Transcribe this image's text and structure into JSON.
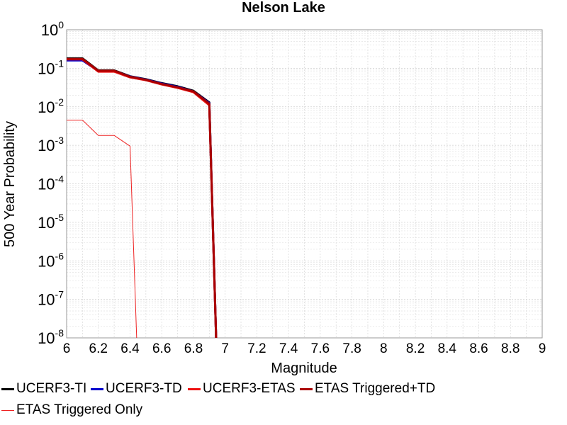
{
  "chart_data": {
    "type": "line",
    "title": "Nelson Lake",
    "xlabel": "Magnitude",
    "ylabel": "500 Year Probability",
    "xlim": [
      6,
      9
    ],
    "ylim": [
      1e-08,
      1
    ],
    "yscale": "log",
    "grid": true,
    "legend_position": "bottom",
    "xticks": [
      "6",
      "6.2",
      "6.4",
      "6.6",
      "6.8",
      "7",
      "7.2",
      "7.4",
      "7.6",
      "7.8",
      "8",
      "8.2",
      "8.4",
      "8.6",
      "8.8",
      "9"
    ],
    "yticks": [
      {
        "base": "10",
        "exp": "0"
      },
      {
        "base": "10",
        "exp": "-1"
      },
      {
        "base": "10",
        "exp": "-2"
      },
      {
        "base": "10",
        "exp": "-3"
      },
      {
        "base": "10",
        "exp": "-4"
      },
      {
        "base": "10",
        "exp": "-5"
      },
      {
        "base": "10",
        "exp": "-6"
      },
      {
        "base": "10",
        "exp": "-7"
      },
      {
        "base": "10",
        "exp": "-8"
      }
    ],
    "series": [
      {
        "name": "UCERF3-TI",
        "color": "#000000",
        "width": 3,
        "x": [
          6.0,
          6.1,
          6.2,
          6.3,
          6.4,
          6.5,
          6.6,
          6.7,
          6.8,
          6.9,
          6.95
        ],
        "y": [
          0.18,
          0.18,
          0.088,
          0.088,
          0.062,
          0.052,
          0.041,
          0.034,
          0.026,
          0.013,
          1e-09
        ]
      },
      {
        "name": "UCERF3-TD",
        "color": "#0000cc",
        "width": 3,
        "x": [
          6.0,
          6.1,
          6.2,
          6.3,
          6.4,
          6.5,
          6.6,
          6.7,
          6.8,
          6.9,
          6.95
        ],
        "y": [
          0.16,
          0.16,
          0.085,
          0.085,
          0.061,
          0.051,
          0.04,
          0.033,
          0.025,
          0.0125,
          1e-09
        ]
      },
      {
        "name": "UCERF3-ETAS",
        "color": "#ee1111",
        "width": 3,
        "x": [
          6.0,
          6.1,
          6.2,
          6.3,
          6.4,
          6.5,
          6.6,
          6.7,
          6.8,
          6.9,
          6.95
        ],
        "y": [
          0.17,
          0.17,
          0.082,
          0.082,
          0.058,
          0.049,
          0.038,
          0.031,
          0.024,
          0.011,
          1e-09
        ]
      },
      {
        "name": "ETAS Triggered+TD",
        "color": "#aa0000",
        "width": 3,
        "x": [
          6.0,
          6.1,
          6.2,
          6.3,
          6.4,
          6.5,
          6.6,
          6.7,
          6.8,
          6.9,
          6.95
        ],
        "y": [
          0.175,
          0.175,
          0.086,
          0.086,
          0.06,
          0.05,
          0.039,
          0.032,
          0.025,
          0.012,
          1e-09
        ]
      },
      {
        "name": "ETAS Triggered Only",
        "color": "#ee2222",
        "width": 1,
        "x": [
          6.0,
          6.1,
          6.2,
          6.3,
          6.4,
          6.45
        ],
        "y": [
          0.0045,
          0.0045,
          0.0018,
          0.0018,
          0.00095,
          1e-09
        ]
      }
    ]
  }
}
